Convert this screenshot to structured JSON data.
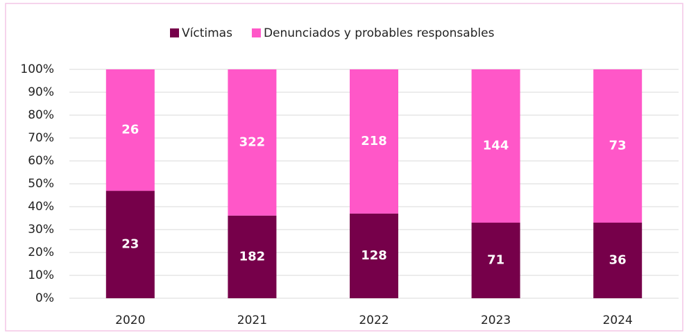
{
  "chart_data": {
    "type": "bar",
    "stacking": "percent",
    "categories": [
      "2020",
      "2021",
      "2022",
      "2023",
      "2024"
    ],
    "series": [
      {
        "name": "Víctimas",
        "color": "#76004a",
        "values": [
          23,
          182,
          128,
          71,
          36
        ]
      },
      {
        "name": "Denunciados y probables responsables",
        "color": "#ff57c8",
        "values": [
          26,
          322,
          218,
          144,
          73
        ]
      }
    ],
    "ylim": [
      0,
      100
    ],
    "yticks": [
      {
        "value": 0,
        "label": "0%"
      },
      {
        "value": 10,
        "label": "10%"
      },
      {
        "value": 20,
        "label": "20%"
      },
      {
        "value": 30,
        "label": "30%"
      },
      {
        "value": 40,
        "label": "40%"
      },
      {
        "value": 50,
        "label": "50%"
      },
      {
        "value": 60,
        "label": "60%"
      },
      {
        "value": 70,
        "label": "70%"
      },
      {
        "value": 80,
        "label": "80%"
      },
      {
        "value": 90,
        "label": "90%"
      },
      {
        "value": 100,
        "label": "100%"
      }
    ],
    "grid": true,
    "legend": "top"
  }
}
